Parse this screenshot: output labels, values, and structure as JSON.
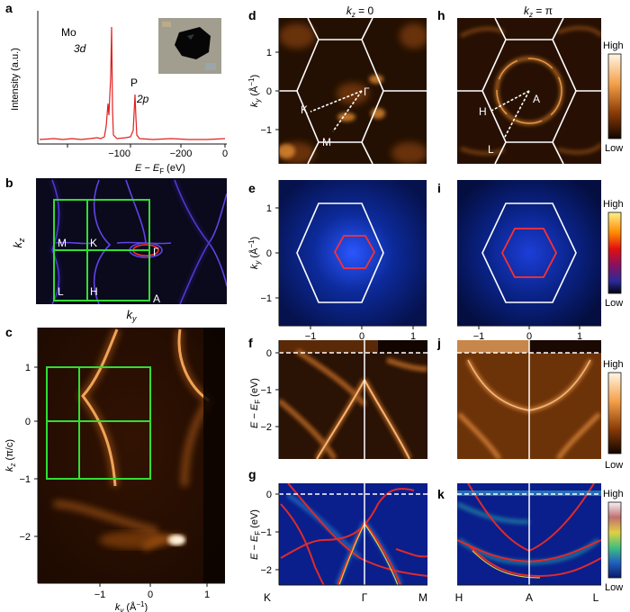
{
  "panels": {
    "a": {
      "letter": "a",
      "ylabel": "Intensity (a.u.)",
      "xlabel_main": "E − E",
      "xlabel_sub": "F",
      "xlabel_unit": " (eV)",
      "xticks": [
        "−200",
        "−100",
        "0"
      ],
      "peaks": [
        {
          "element": "Mo",
          "orbital": "3d"
        },
        {
          "element": "P",
          "orbital": "2p"
        }
      ],
      "inset": "sample-photo"
    },
    "b": {
      "letter": "b",
      "xlabel": "k",
      "xlabel_sub": "y",
      "ylabel": "k",
      "ylabel_sub": "z",
      "points": [
        "M",
        "K",
        "Γ",
        "L",
        "H",
        "A"
      ]
    },
    "c": {
      "letter": "c",
      "ylabel": "k",
      "ylabel_sub": "z",
      "ylabel_unit": " (π/c)",
      "xlabel": "k",
      "xlabel_sub": "y",
      "xlabel_unit": " (Å",
      "xlabel_unit_sup": "−1",
      "xlabel_unit_end": ")",
      "yticks": [
        "1",
        "0",
        "−1",
        "−2"
      ],
      "xticks": [
        "−1",
        "0",
        "1"
      ]
    },
    "d": {
      "letter": "d",
      "title_main": "k",
      "title_sub": "z",
      "title_rest": " = 0",
      "ylabel": "k",
      "ylabel_sub": "y",
      "ylabel_unit": " (Å",
      "ylabel_unit_sup": "−1",
      "ylabel_unit_end": ")",
      "yticks": [
        "1",
        "0",
        "−1"
      ],
      "points": [
        "Γ",
        "K",
        "M"
      ]
    },
    "h": {
      "letter": "h",
      "title_main": "k",
      "title_sub": "z",
      "title_rest": " = π",
      "points": [
        "A",
        "H",
        "L"
      ],
      "colorbar_high": "High",
      "colorbar_low": "Low"
    },
    "e": {
      "letter": "e",
      "ylabel": "k",
      "ylabel_sub": "y",
      "ylabel_unit": " (Å",
      "ylabel_unit_sup": "−1",
      "ylabel_unit_end": ")",
      "yticks": [
        "1",
        "0",
        "−1"
      ],
      "xticks": [
        "−1",
        "0",
        "1"
      ],
      "xlabel": "k",
      "xlabel_sub": "x",
      "xlabel_unit": " (Å",
      "xlabel_unit_sup": "−1",
      "xlabel_unit_end": ")"
    },
    "i": {
      "letter": "i",
      "xticks": [
        "−1",
        "0",
        "1"
      ],
      "xlabel": "k",
      "xlabel_sub": "x",
      "xlabel_unit": " (Å",
      "xlabel_unit_sup": "−1",
      "xlabel_unit_end": ")",
      "colorbar_high": "High",
      "colorbar_low": "Low"
    },
    "f": {
      "letter": "f",
      "ylabel": "E − E",
      "ylabel_sub": "F",
      "ylabel_unit": " (eV)",
      "yticks": [
        "0",
        "−1",
        "−2"
      ]
    },
    "j": {
      "letter": "j",
      "colorbar_high": "High",
      "colorbar_low": "Low"
    },
    "g": {
      "letter": "g",
      "ylabel": "E − E",
      "ylabel_sub": "F",
      "ylabel_unit": " (eV)",
      "yticks": [
        "0",
        "−1",
        "−2"
      ],
      "xticks": [
        "K",
        "Γ",
        "M"
      ]
    },
    "k": {
      "letter": "k",
      "xticks": [
        "H",
        "A",
        "L"
      ],
      "colorbar_high": "High",
      "colorbar_low": "Low"
    }
  },
  "colors": {
    "spectrum": "#e02020",
    "bz_green": "#33dd33",
    "arpes_dark": "#1a0800",
    "arpes_bright": "#ffb060",
    "calc_blue": "#0a1f8c",
    "red_contour": "#ff3030"
  }
}
